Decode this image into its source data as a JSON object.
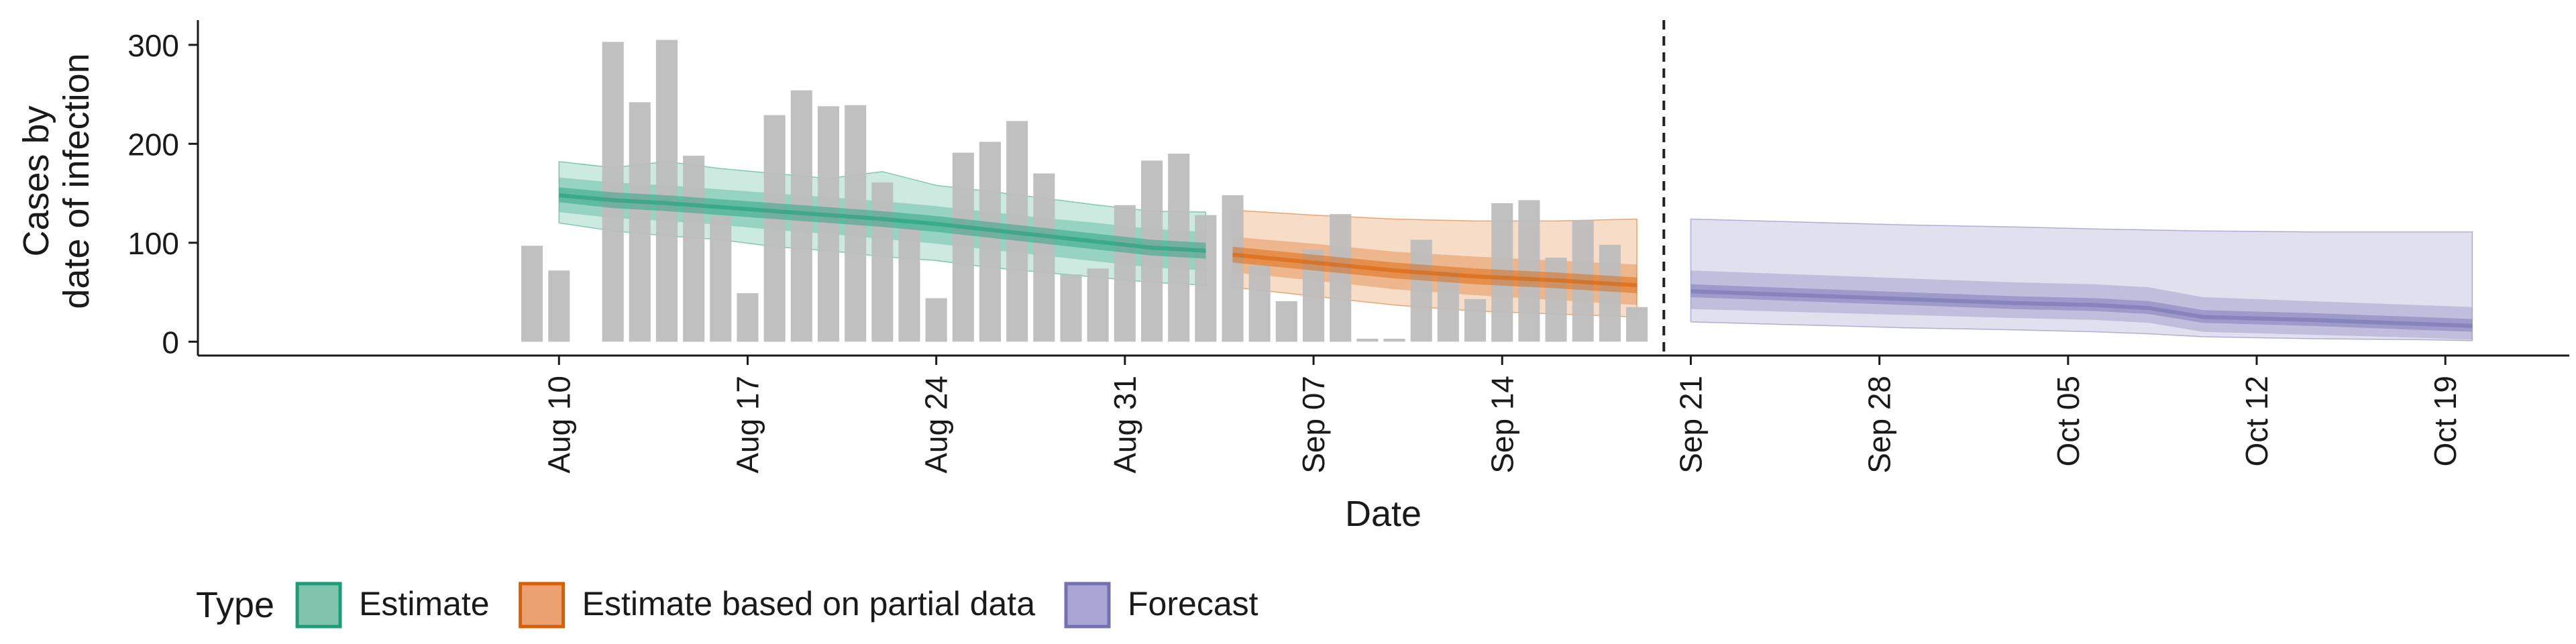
{
  "chart_data": {
    "type": "bar",
    "xlabel": "Date",
    "ylabel_lines": [
      "Cases by",
      "date of infection"
    ],
    "ylim": [
      -14,
      325
    ],
    "y_ticks": [
      0,
      100,
      200,
      300
    ],
    "x_ticks": [
      {
        "day": 9,
        "label": "Aug 10"
      },
      {
        "day": 16,
        "label": "Aug 17"
      },
      {
        "day": 23,
        "label": "Aug 24"
      },
      {
        "day": 30,
        "label": "Aug 31"
      },
      {
        "day": 37,
        "label": "Sep 07"
      },
      {
        "day": 44,
        "label": "Sep 14"
      },
      {
        "day": 51,
        "label": "Sep 21"
      },
      {
        "day": 58,
        "label": "Sep 28"
      },
      {
        "day": 65,
        "label": "Oct 05"
      },
      {
        "day": 72,
        "label": "Oct 12"
      },
      {
        "day": 79,
        "label": "Oct 19"
      }
    ],
    "xlim_days": [
      -4.4,
      83.6
    ],
    "date_axis_start": "Aug 01",
    "forecast_start_day": 50,
    "bars": {
      "start_day": 8,
      "values": [
        97,
        72,
        0,
        303,
        242,
        305,
        188,
        127,
        49,
        229,
        254,
        238,
        239,
        161,
        115,
        44,
        191,
        202,
        223,
        170,
        68,
        74,
        138,
        183,
        190,
        128,
        148,
        77,
        41,
        93,
        129,
        3,
        3,
        103,
        71,
        43,
        140,
        143,
        85,
        123,
        98,
        35
      ]
    },
    "series": [
      {
        "name": "Estimate",
        "color": "#1b9e77",
        "days": [
          9,
          11,
          13,
          15,
          17,
          19,
          21,
          23,
          25,
          27,
          29,
          31,
          33
        ],
        "median": [
          148,
          143,
          140,
          136,
          132,
          128,
          124,
          119,
          113,
          107,
          101,
          95,
          92
        ],
        "ci20": [
          [
            141,
            156
          ],
          [
            135,
            151
          ],
          [
            132,
            148
          ],
          [
            128,
            144
          ],
          [
            124,
            140
          ],
          [
            120,
            136
          ],
          [
            116,
            132
          ],
          [
            111,
            127
          ],
          [
            105,
            121
          ],
          [
            99,
            115
          ],
          [
            93,
            109
          ],
          [
            87,
            103
          ],
          [
            84,
            100
          ]
        ],
        "ci50": [
          [
            131,
            166
          ],
          [
            125,
            161
          ],
          [
            122,
            158
          ],
          [
            118,
            154
          ],
          [
            113,
            150
          ],
          [
            109,
            146
          ],
          [
            104,
            142
          ],
          [
            99,
            137
          ],
          [
            93,
            131
          ],
          [
            87,
            125
          ],
          [
            81,
            120
          ],
          [
            75,
            114
          ],
          [
            72,
            111
          ]
        ],
        "ci90": [
          [
            120,
            182
          ],
          [
            112,
            176
          ],
          [
            107,
            182
          ],
          [
            103,
            175
          ],
          [
            96,
            170
          ],
          [
            92,
            165
          ],
          [
            86,
            172
          ],
          [
            82,
            158
          ],
          [
            75,
            152
          ],
          [
            70,
            145
          ],
          [
            65,
            138
          ],
          [
            60,
            132
          ],
          [
            57,
            131
          ]
        ]
      },
      {
        "name": "Estimate based on partial data",
        "color": "#d95f02",
        "days": [
          34,
          37,
          40,
          43,
          46,
          49
        ],
        "median": [
          88,
          80,
          72,
          66,
          62,
          57
        ],
        "ci20": [
          [
            80,
            96
          ],
          [
            72,
            88
          ],
          [
            64,
            80
          ],
          [
            58,
            74
          ],
          [
            54,
            70
          ],
          [
            49,
            65
          ]
        ],
        "ci50": [
          [
            70,
            106
          ],
          [
            62,
            99
          ],
          [
            53,
            91
          ],
          [
            47,
            86
          ],
          [
            42,
            82
          ],
          [
            37,
            78
          ]
        ],
        "ci90": [
          [
            55,
            133
          ],
          [
            46,
            128
          ],
          [
            37,
            124
          ],
          [
            31,
            122
          ],
          [
            28,
            122
          ],
          [
            25,
            124
          ]
        ]
      },
      {
        "name": "Forecast",
        "color": "#7570b3",
        "days": [
          51,
          55,
          59,
          63,
          66,
          68,
          70,
          74,
          78,
          80
        ],
        "median": [
          51,
          47,
          43,
          39,
          37,
          34,
          25,
          22,
          18,
          16
        ],
        "ci20": [
          [
            45,
            58
          ],
          [
            41,
            54
          ],
          [
            37,
            50
          ],
          [
            33,
            46
          ],
          [
            31,
            44
          ],
          [
            28,
            41
          ],
          [
            19,
            32
          ],
          [
            16,
            29
          ],
          [
            12,
            25
          ],
          [
            10,
            23
          ]
        ],
        "ci50": [
          [
            33,
            72
          ],
          [
            30,
            68
          ],
          [
            27,
            64
          ],
          [
            24,
            60
          ],
          [
            22,
            58
          ],
          [
            19,
            55
          ],
          [
            10,
            45
          ],
          [
            7,
            41
          ],
          [
            4,
            37
          ],
          [
            2,
            35
          ]
        ],
        "ci90": [
          [
            20,
            124
          ],
          [
            17,
            121
          ],
          [
            14,
            118
          ],
          [
            12,
            116
          ],
          [
            10,
            114
          ],
          [
            8,
            113
          ],
          [
            5,
            112
          ],
          [
            3,
            111
          ],
          [
            2,
            111
          ],
          [
            1,
            111
          ]
        ]
      }
    ],
    "legend": {
      "title": "Type",
      "position": "bottom",
      "items": [
        {
          "label": "Estimate",
          "color": "#1b9e77",
          "fill": "#7fc4ac"
        },
        {
          "label": "Estimate based on partial data",
          "color": "#d95f02",
          "fill": "#eba171"
        },
        {
          "label": "Forecast",
          "color": "#7570b3",
          "fill": "#a9a6d3"
        }
      ]
    },
    "bar_color": "#bdbdbd",
    "grid": false
  }
}
